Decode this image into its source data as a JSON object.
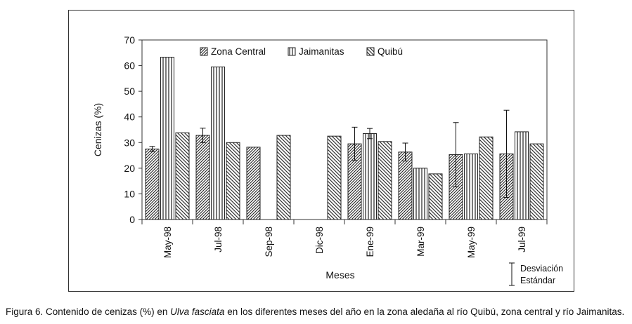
{
  "caption": {
    "prefix": "Figura 6. Contenido de cenizas (%) en ",
    "species": "Ulva fasciata",
    "suffix": " en los diferentes meses del año en la zona aledaña al río Quibú, zona central y río Jaimanitas."
  },
  "chart_data": {
    "type": "bar",
    "title": "",
    "xlabel": "Meses",
    "ylabel": "Cenizas (%)",
    "ylim": [
      0,
      70
    ],
    "yticks": [
      0,
      10,
      20,
      30,
      40,
      50,
      60,
      70
    ],
    "categories": [
      "May-98",
      "Jul-98",
      "Sep-98",
      "Dic-98",
      "Ene-99",
      "Mar-99",
      "May-99",
      "Jul-99"
    ],
    "series": [
      {
        "name": "Zona Central",
        "pattern": "diag-dense",
        "values": [
          27.5,
          32.8,
          28.2,
          null,
          29.5,
          26.3,
          25.3,
          25.6
        ],
        "errors": [
          1.0,
          2.8,
          null,
          null,
          6.5,
          3.5,
          12.5,
          17.0
        ]
      },
      {
        "name": "Jaimanitas",
        "pattern": "vertical",
        "values": [
          63.3,
          59.5,
          null,
          null,
          33.5,
          20.0,
          25.6,
          34.2
        ],
        "errors": [
          null,
          null,
          null,
          null,
          2.0,
          null,
          null,
          null
        ]
      },
      {
        "name": "Quibú",
        "pattern": "diag-sparse",
        "values": [
          33.8,
          30.0,
          32.8,
          32.5,
          30.4,
          17.8,
          32.2,
          29.5
        ],
        "errors": [
          null,
          null,
          null,
          null,
          null,
          null,
          null,
          null
        ]
      }
    ],
    "legend_position": "top-center",
    "error_legend": [
      "Desviación",
      "Estándar"
    ]
  }
}
